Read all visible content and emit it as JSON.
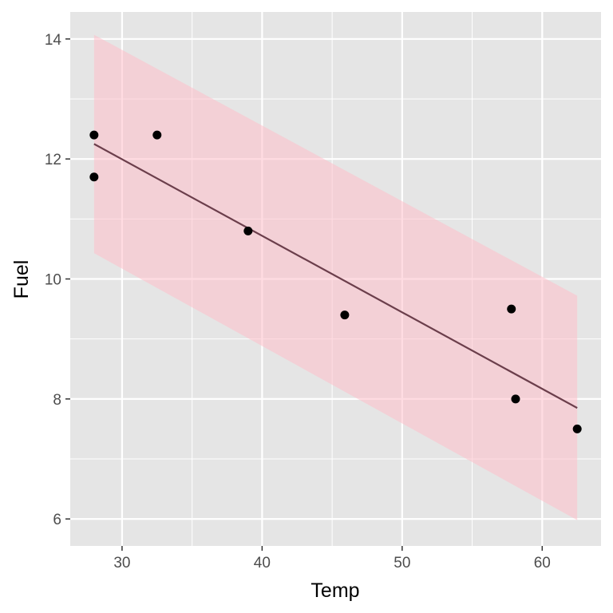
{
  "chart_data": {
    "type": "scatter",
    "title": "",
    "xlabel": "Temp",
    "ylabel": "Fuel",
    "xlim": [
      26.3,
      64.2
    ],
    "ylim": [
      5.55,
      14.45
    ],
    "x_ticks": [
      30,
      40,
      50,
      60
    ],
    "y_ticks": [
      6,
      8,
      10,
      12,
      14
    ],
    "x_tick_labels": [
      "30",
      "40",
      "50",
      "60"
    ],
    "y_tick_labels": [
      "6",
      "8",
      "10",
      "12",
      "14"
    ],
    "grid": true,
    "legend": "none",
    "points": [
      {
        "x": 28.0,
        "y": 12.4
      },
      {
        "x": 28.0,
        "y": 11.7
      },
      {
        "x": 32.5,
        "y": 12.4
      },
      {
        "x": 39.0,
        "y": 10.8
      },
      {
        "x": 45.9,
        "y": 9.4
      },
      {
        "x": 57.8,
        "y": 9.5
      },
      {
        "x": 58.1,
        "y": 8.0
      },
      {
        "x": 62.5,
        "y": 7.5
      }
    ],
    "fit_line": {
      "type": "linear",
      "x": [
        28.0,
        62.5
      ],
      "y": [
        12.25,
        7.85
      ]
    },
    "prediction_band": {
      "x": [
        28.0,
        62.5
      ],
      "lower": [
        10.43,
        5.98
      ],
      "upper": [
        14.07,
        9.72
      ]
    },
    "colors": {
      "panel_background": "#e5e5e5",
      "grid_major": "#ffffff",
      "points": "#000000",
      "fit_line": "#6b3e4b",
      "band_fill": "#ffc0cb",
      "tick_text": "#4d4d4d",
      "axis_title_text": "#000000"
    }
  }
}
